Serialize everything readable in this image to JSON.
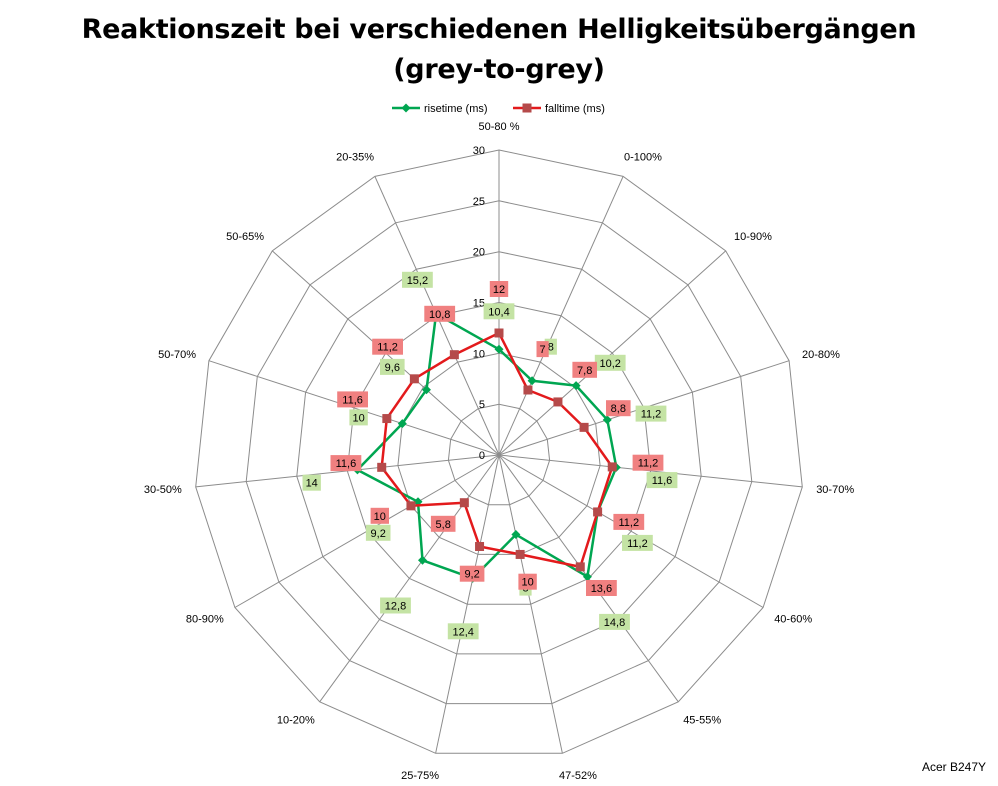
{
  "chart_data": {
    "type": "radar",
    "title_line1": "Reaktionszeit bei verschiedenen Helligkeitsübergängen",
    "title_line2": "(grey-to-grey)",
    "categories": [
      "50-80 %",
      "0-100%",
      "10-90%",
      "20-80%",
      "30-70%",
      "40-60%",
      "45-55%",
      "47-52%",
      "25-75%",
      "10-20%",
      "80-90%",
      "30-50%",
      "50-70%",
      "50-65%",
      "20-35%"
    ],
    "rlim": [
      0,
      30
    ],
    "ticks": [
      0,
      5,
      10,
      15,
      20,
      25,
      30
    ],
    "tick_labels": [
      "0",
      "5",
      "10",
      "15",
      "20",
      "25",
      "30"
    ],
    "legend_position": "top",
    "grid": true,
    "series": [
      {
        "name": "risetime (ms)",
        "color": "#00a651",
        "marker": "diamond",
        "values": [
          10.4,
          8,
          10.2,
          11.2,
          11.6,
          11.2,
          14.8,
          8,
          12.4,
          12.8,
          9.2,
          14,
          10,
          9.6,
          15.2
        ],
        "labels": [
          "10,4",
          "8",
          "10,2",
          "11,2",
          "11,6",
          "11,2",
          "14,8",
          "8",
          "12,4",
          "12,8",
          "9,2",
          "14",
          "10",
          "9,6",
          "15,2"
        ],
        "label_color": "#c4e3a4"
      },
      {
        "name": "falltime (ms)",
        "color": "#e31a1c",
        "marker": "square",
        "values": [
          12,
          7,
          7.8,
          8.8,
          11.2,
          11.2,
          13.6,
          10,
          9.2,
          5.8,
          10,
          11.6,
          11.6,
          11.2,
          10.8
        ],
        "labels": [
          "12",
          "7",
          "7,8",
          "8,8",
          "11,2",
          "11,2",
          "13,6",
          "10",
          "9,2",
          "5,8",
          "10",
          "11,6",
          "11,6",
          "11,2",
          "10,8"
        ],
        "label_color": "#f08080"
      }
    ]
  },
  "watermark": "Acer B247Y"
}
